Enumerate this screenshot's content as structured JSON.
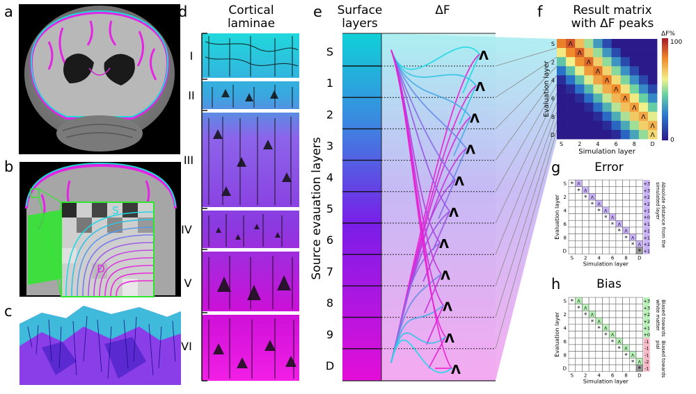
{
  "panels": {
    "a": {
      "label": "a"
    },
    "b": {
      "label": "b",
      "inset_top": "S",
      "inset_bottom": "D"
    },
    "c": {
      "label": "c"
    },
    "d": {
      "label": "d",
      "title_line1": "Cortical",
      "title_line2": "laminae",
      "layers": [
        "I",
        "II",
        "III",
        "IV",
        "V",
        "VI"
      ]
    },
    "e": {
      "label": "e",
      "title_surface_1": "Surface",
      "title_surface_2": "layers",
      "title_df": "ΔF",
      "ylabel": "Source evauation layers",
      "rows": [
        "S",
        "1",
        "2",
        "3",
        "4",
        "5",
        "6",
        "7",
        "8",
        "9",
        "D"
      ],
      "peak_marker": "Λ"
    },
    "f": {
      "label": "f",
      "title_line1": "Result matrix",
      "title_line2": "with ΔF peaks",
      "xlabel": "Simulation layer",
      "ylabel": "Evaluation layer",
      "xticks": [
        "S",
        "2",
        "4",
        "6",
        "8",
        "D"
      ],
      "yticks": [
        "S",
        "2",
        "4",
        "6",
        "8",
        "D"
      ],
      "colorbar_title": "ΔF%",
      "colorbar_max": "100",
      "colorbar_min": "0",
      "peak_marker": "Λ"
    },
    "g": {
      "label": "g",
      "title": "Error",
      "xlabel": "Simulation layer",
      "ylabel": "Evaluation layer",
      "xticks": [
        "S",
        "2",
        "4",
        "6",
        "8",
        "D"
      ],
      "yticks": [
        "S",
        "2",
        "4",
        "6",
        "8",
        "D"
      ],
      "values": [
        "+3",
        "+3",
        "+2",
        "+2",
        "+1",
        "+0",
        "+1",
        "+1",
        "+1",
        "+2",
        "+1"
      ],
      "side_note_1": "Absolute distance from the",
      "side_note_2": "simulated layer",
      "diag_marker": "*",
      "peak_marker": "Λ"
    },
    "h": {
      "label": "h",
      "title": "Bias",
      "xlabel": "Simulation layer",
      "ylabel": "Evaluation layer",
      "xticks": [
        "S",
        "2",
        "4",
        "6",
        "8",
        "D"
      ],
      "yticks": [
        "S",
        "2",
        "4",
        "6",
        "8",
        "D"
      ],
      "values": [
        "+3",
        "+3",
        "+2",
        "+2",
        "+1",
        "+0",
        "-1",
        "-1",
        "-1",
        "-2",
        "-1"
      ],
      "note_top_1": "Biased towards",
      "note_top_2": "white matter",
      "note_bottom_1": "Biased towards",
      "note_bottom_2": "pial",
      "diag_marker": "*",
      "peak_marker": "Λ"
    }
  },
  "peak_columns": [
    1,
    2,
    3,
    4,
    5,
    6,
    7,
    8,
    9,
    10,
    10
  ],
  "colors": {
    "cyan": "#22d3d8",
    "blue": "#4aa8e0",
    "purple": "#8a4fe8",
    "violet": "#7a3ad8",
    "magenta": "#e61ee6",
    "error_cell": "#c9b2f5",
    "bias_pos": "#b8f0b8",
    "bias_neg": "#f6b8c6",
    "inset_green": "#2de82d"
  }
}
